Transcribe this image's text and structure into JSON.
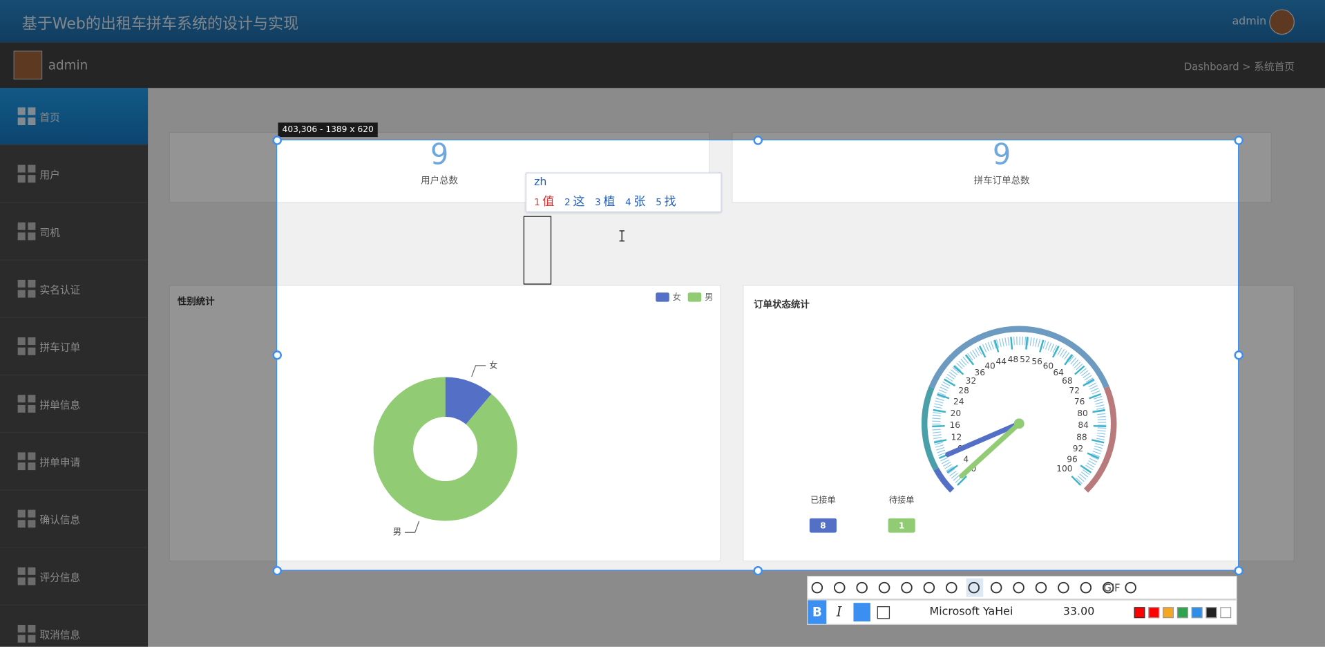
{
  "header": {
    "title": "基于Web的出租车拼车系统的设计与实现",
    "user": "admin"
  },
  "topbar": {
    "user": "admin",
    "breadcrumb": "Dashboard > 系统首页"
  },
  "sidebar": {
    "items": [
      "首页",
      "用户",
      "司机",
      "实名认证",
      "拼车订单",
      "拼单信息",
      "拼单申请",
      "确认信息",
      "评分信息",
      "取消信息"
    ],
    "active": 0
  },
  "stats": [
    {
      "value": 9,
      "label": "用户总数"
    },
    {
      "value": 9,
      "label": "拼车订单总数"
    }
  ],
  "gender_chart": {
    "title": "性别统计",
    "series": [
      {
        "name": "女",
        "value": 1,
        "color": "#5470c6"
      },
      {
        "name": "男",
        "value": 8,
        "color": "#91cc75"
      }
    ]
  },
  "order_chart": {
    "title": "订单状态统计",
    "min": 0,
    "max": 100,
    "ticks": [
      0,
      4,
      8,
      12,
      16,
      20,
      24,
      28,
      32,
      36,
      40,
      44,
      48,
      52,
      56,
      60,
      64,
      68,
      72,
      76,
      80,
      84,
      88,
      92,
      96,
      100
    ],
    "series": [
      {
        "name": "已接单",
        "value": 8,
        "color": "#5470c6"
      },
      {
        "name": "待接单",
        "value": 1,
        "color": "#91cc75"
      }
    ]
  },
  "capture": {
    "size_label": "403,306 - 1389 x 620",
    "gif": "GIF",
    "bold": "B",
    "italic": "I",
    "font": "Microsoft YaHei",
    "font_size": "33.00"
  },
  "ime": {
    "input": "zh",
    "candidates": [
      {
        "key": 1,
        "text": "值"
      },
      {
        "key": 2,
        "text": "这"
      },
      {
        "key": 3,
        "text": "植"
      },
      {
        "key": 4,
        "text": "张"
      },
      {
        "key": 5,
        "text": "找"
      }
    ]
  }
}
